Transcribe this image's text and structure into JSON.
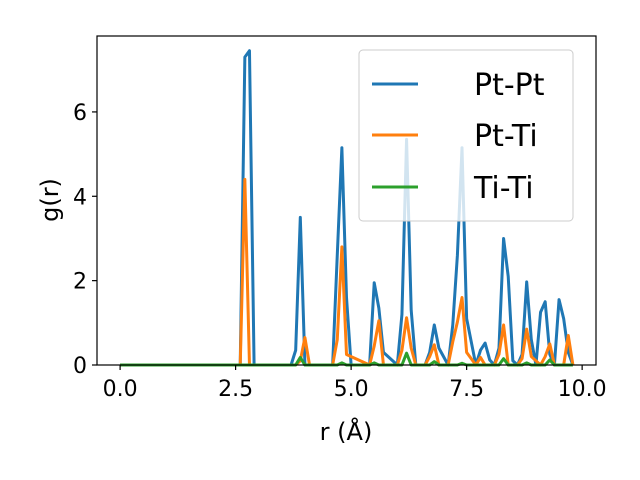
{
  "chart_data": {
    "type": "line",
    "title": "",
    "xlabel": "r (Å)",
    "ylabel": "g(r)",
    "xlim": [
      -0.5,
      10.3
    ],
    "ylim": [
      0,
      7.8
    ],
    "xticks": [
      0.0,
      2.5,
      5.0,
      7.5,
      10.0
    ],
    "xtick_labels": [
      "0.0",
      "2.5",
      "5.0",
      "7.5",
      "10.0"
    ],
    "yticks": [
      0,
      2,
      4,
      6
    ],
    "ytick_labels": [
      "0",
      "2",
      "4",
      "6"
    ],
    "grid": false,
    "legend_position": "top-right",
    "series": [
      {
        "name": "Pt-Pt",
        "color": "#1f77b4",
        "x": [
          0.0,
          2.6,
          2.7,
          2.8,
          2.9,
          3.7,
          3.8,
          3.9,
          4.0,
          4.6,
          4.7,
          4.8,
          4.9,
          5.0,
          5.4,
          5.5,
          5.6,
          5.7,
          6.0,
          6.1,
          6.2,
          6.3,
          6.4,
          6.6,
          6.7,
          6.8,
          6.9,
          7.1,
          7.2,
          7.3,
          7.4,
          7.5,
          7.7,
          7.8,
          7.9,
          8.0,
          8.1,
          8.2,
          8.3,
          8.4,
          8.5,
          8.6,
          8.7,
          8.8,
          8.9,
          9.0,
          9.1,
          9.2,
          9.3,
          9.4,
          9.5,
          9.6,
          9.7,
          9.8
        ],
        "values": [
          0,
          0,
          7.3,
          7.45,
          0,
          0,
          0.35,
          3.5,
          0,
          0,
          2.6,
          5.15,
          1.6,
          0,
          0,
          1.95,
          1.35,
          0.3,
          0,
          1.2,
          5.35,
          1.3,
          0,
          0,
          0.3,
          0.95,
          0.4,
          0,
          0.95,
          2.6,
          5.15,
          1.1,
          0,
          0.35,
          0.52,
          0.12,
          0,
          0.4,
          3.0,
          2.1,
          0.1,
          0,
          0.25,
          1.97,
          0.6,
          0,
          1.25,
          1.5,
          0.25,
          0,
          1.55,
          1.1,
          0.3,
          0
        ]
      },
      {
        "name": "Pt-Ti",
        "color": "#ff7f0e",
        "x": [
          0.0,
          2.6,
          2.7,
          2.8,
          3.8,
          3.9,
          4.0,
          4.1,
          4.6,
          4.7,
          4.8,
          4.9,
          5.4,
          5.5,
          5.6,
          5.7,
          6.0,
          6.1,
          6.2,
          6.3,
          6.4,
          6.6,
          6.7,
          6.8,
          6.9,
          7.1,
          7.2,
          7.3,
          7.4,
          7.5,
          7.7,
          7.8,
          7.9,
          8.1,
          8.2,
          8.3,
          8.4,
          8.6,
          8.7,
          8.8,
          8.9,
          9.1,
          9.2,
          9.3,
          9.4,
          9.6,
          9.7,
          9.8
        ],
        "values": [
          0,
          0,
          4.4,
          0,
          0,
          0.1,
          0.65,
          0,
          0,
          0.6,
          2.8,
          0.25,
          0,
          0.45,
          1.05,
          0,
          0,
          0.35,
          1.12,
          0.4,
          0,
          0,
          0.2,
          0.48,
          0,
          0,
          0.55,
          1.02,
          1.6,
          0.3,
          0,
          0.18,
          0,
          0,
          0.25,
          0.95,
          0,
          0,
          0.15,
          0.85,
          0.2,
          0,
          0.2,
          0.5,
          0,
          0,
          0.7,
          0
        ]
      },
      {
        "name": "Ti-Ti",
        "color": "#2ca02c",
        "x": [
          0.0,
          3.8,
          3.9,
          4.0,
          4.7,
          4.8,
          4.9,
          5.4,
          5.5,
          5.6,
          6.1,
          6.2,
          6.3,
          6.7,
          6.8,
          6.9,
          7.3,
          7.4,
          7.5,
          8.2,
          8.3,
          8.4,
          8.7,
          8.8,
          8.9,
          9.2,
          9.3,
          9.4,
          9.8
        ],
        "values": [
          0,
          0,
          0.18,
          0,
          0,
          0.05,
          0,
          0,
          0.05,
          0,
          0,
          0.28,
          0,
          0,
          0.08,
          0,
          0,
          0.04,
          0,
          0,
          0.15,
          0,
          0,
          0.05,
          0,
          0,
          0.12,
          0,
          0
        ]
      }
    ]
  }
}
